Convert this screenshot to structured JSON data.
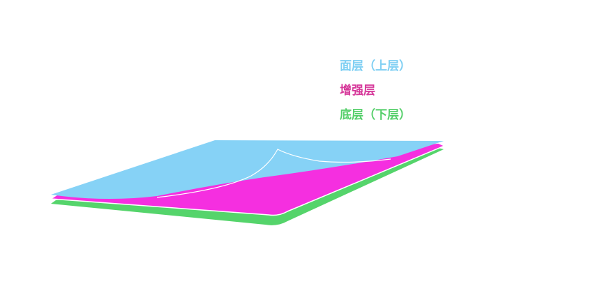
{
  "layers": [
    {
      "key": "top",
      "label": "面层（上层）",
      "color": "#7fcff3"
    },
    {
      "key": "middle",
      "label": "增强层",
      "color": "#d6399a"
    },
    {
      "key": "bottom",
      "label": "底层（下层）",
      "color": "#55cf6a"
    }
  ],
  "fill_colors": {
    "top": "#86d2f6",
    "middle": "#f52fe0",
    "bottom": "#55d46b"
  }
}
